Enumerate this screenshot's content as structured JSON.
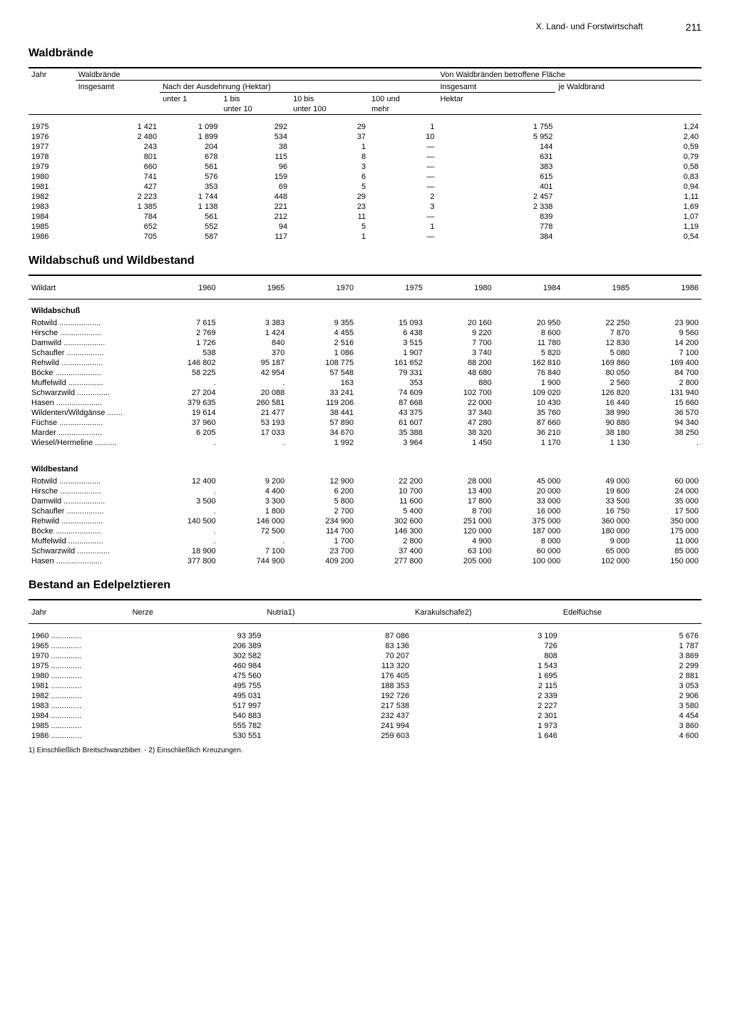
{
  "header": {
    "section": "X. Land- und Forstwirtschaft",
    "page": "211"
  },
  "table1": {
    "title": "Waldbrände",
    "colheads": {
      "jahr": "Jahr",
      "waldbraende": "Waldbrände",
      "insgesamt": "Insgesamt",
      "nach": "Nach der Ausdehnung (Hektar)",
      "u1": "unter 1",
      "u10a": "1 bis",
      "u10b": "unter 10",
      "u100a": "10 bis",
      "u100b": "unter 100",
      "m100a": "100 und",
      "m100b": "mehr",
      "flaeche": "Von Waldbränden betroffene Fläche",
      "hektar": "Hektar",
      "je": "je Waldbrand"
    },
    "rows": [
      {
        "y": "1975",
        "ins": "1 421",
        "u1": "1 099",
        "u10": "292",
        "u100": "29",
        "m100": "1",
        "hek": "1 755",
        "je": "1,24"
      },
      {
        "y": "1976",
        "ins": "2 480",
        "u1": "1 899",
        "u10": "534",
        "u100": "37",
        "m100": "10",
        "hek": "5 952",
        "je": "2,40"
      },
      {
        "y": "1977",
        "ins": "243",
        "u1": "204",
        "u10": "38",
        "u100": "1",
        "m100": "—",
        "hek": "144",
        "je": "0,59"
      },
      {
        "y": "1978",
        "ins": "801",
        "u1": "678",
        "u10": "115",
        "u100": "8",
        "m100": "—",
        "hek": "631",
        "je": "0,79"
      },
      {
        "y": "1979",
        "ins": "660",
        "u1": "561",
        "u10": "96",
        "u100": "3",
        "m100": "—",
        "hek": "383",
        "je": "0,58"
      },
      {
        "y": "1980",
        "ins": "741",
        "u1": "576",
        "u10": "159",
        "u100": "6",
        "m100": "—",
        "hek": "615",
        "je": "0,83"
      },
      {
        "y": "1981",
        "ins": "427",
        "u1": "353",
        "u10": "69",
        "u100": "5",
        "m100": "—",
        "hek": "401",
        "je": "0,94"
      },
      {
        "y": "1982",
        "ins": "2 223",
        "u1": "1 744",
        "u10": "448",
        "u100": "29",
        "m100": "2",
        "hek": "2 457",
        "je": "1,11"
      },
      {
        "y": "1983",
        "ins": "1 385",
        "u1": "1 138",
        "u10": "221",
        "u100": "23",
        "m100": "3",
        "hek": "2 338",
        "je": "1,69"
      },
      {
        "y": "1984",
        "ins": "784",
        "u1": "561",
        "u10": "212",
        "u100": "11",
        "m100": "—",
        "hek": "839",
        "je": "1,07"
      },
      {
        "y": "1985",
        "ins": "652",
        "u1": "552",
        "u10": "94",
        "u100": "5",
        "m100": "1",
        "hek": "778",
        "je": "1,19"
      },
      {
        "y": "1986",
        "ins": "705",
        "u1": "587",
        "u10": "117",
        "u100": "1",
        "m100": "—",
        "hek": "384",
        "je": "0,54"
      }
    ]
  },
  "table2": {
    "title": "Wildabschuß und Wildbestand",
    "col_label": "Wildart",
    "years": [
      "1960",
      "1965",
      "1970",
      "1975",
      "1980",
      "1984",
      "1985",
      "1986"
    ],
    "section1": "Wildabschuß",
    "section2": "Wildbestand",
    "abschuss": [
      {
        "n": "Rotwild",
        "v": [
          "7 615",
          "3 383",
          "9 355",
          "15 093",
          "20 160",
          "20 950",
          "22 250",
          "23 900"
        ]
      },
      {
        "n": "Hirsche",
        "v": [
          "2 769",
          "1 424",
          "4 455",
          "6 438",
          "9 220",
          "8 600",
          "7 870",
          "9 560"
        ]
      },
      {
        "n": "Damwild",
        "v": [
          "1 726",
          "840",
          "2 516",
          "3 515",
          "7 700",
          "11 780",
          "12 830",
          "14 200"
        ]
      },
      {
        "n": "Schaufler",
        "v": [
          "538",
          "370",
          "1 086",
          "1 907",
          "3 740",
          "5 820",
          "5 080",
          "7 100"
        ]
      },
      {
        "n": "Rehwild",
        "v": [
          "146 802",
          "95 187",
          "108 775",
          "161 652",
          "88 200",
          "162 810",
          "169 860",
          "169 400"
        ]
      },
      {
        "n": "Böcke",
        "v": [
          "58 225",
          "42 954",
          "57 548",
          "79 331",
          "48 680",
          "76 840",
          "80 050",
          "84 700"
        ]
      },
      {
        "n": "Muffelwild",
        "v": [
          ".",
          ".",
          "163",
          "353",
          "880",
          "1 900",
          "2 560",
          "2 800"
        ]
      },
      {
        "n": "Schwarzwild",
        "v": [
          "27 204",
          "20 088",
          "33 241",
          "74 609",
          "102 700",
          "109 020",
          "126 820",
          "131 940"
        ]
      },
      {
        "n": "Hasen",
        "v": [
          "379 635",
          "260 581",
          "119 206",
          "87 668",
          "22 000",
          "10 430",
          "16 440",
          "15 660"
        ]
      },
      {
        "n": "Wildenten/Wildgänse",
        "v": [
          "19 614",
          "21 477",
          "38 441",
          "43 375",
          "37 340",
          "35 760",
          "38 990",
          "36 570"
        ]
      },
      {
        "n": "Füchse",
        "v": [
          "37 960",
          "53 193",
          "57 890",
          "61 607",
          "47 280",
          "87 660",
          "90 880",
          "94 340"
        ]
      },
      {
        "n": "Marder",
        "v": [
          "6 205",
          "17 033",
          "34 670",
          "35 388",
          "38 320",
          "36 210",
          "38 180",
          "38 250"
        ]
      },
      {
        "n": "Wiesel/Hermeline",
        "v": [
          ".",
          ".",
          "1 992",
          "3 964",
          "1 450",
          "1 170",
          "1 130",
          "."
        ]
      }
    ],
    "bestand": [
      {
        "n": "Rotwild",
        "v": [
          "12 400",
          "9 200",
          "12 900",
          "22 200",
          "28 000",
          "45 000",
          "49 000",
          "60 000"
        ]
      },
      {
        "n": "Hirsche",
        "v": [
          ".",
          "4 400",
          "6 200",
          "10 700",
          "13 400",
          "20 000",
          "19 600",
          "24 000"
        ]
      },
      {
        "n": "Damwild",
        "v": [
          "3 500",
          "3 300",
          "5 800",
          "11 600",
          "17 800",
          "33 000",
          "33 500",
          "35 000"
        ]
      },
      {
        "n": "Schaufler",
        "v": [
          ".",
          "1 800",
          "2 700",
          "5 400",
          "8 700",
          "16 000",
          "16 750",
          "17 500"
        ]
      },
      {
        "n": "Rehwild",
        "v": [
          "140 500",
          "146 000",
          "234 900",
          "302 600",
          "251 000",
          "375 000",
          "360 000",
          "350 000"
        ]
      },
      {
        "n": "Böcke",
        "v": [
          ".",
          "72 500",
          "114 700",
          "146 300",
          "120 000",
          "187 000",
          "180 000",
          "175 000"
        ]
      },
      {
        "n": "Muffelwild",
        "v": [
          ".",
          ".",
          "1 700",
          "2 800",
          "4 900",
          "8 000",
          "9 000",
          "11 000"
        ]
      },
      {
        "n": "Schwarzwild",
        "v": [
          "18 900",
          "7 100",
          "23 700",
          "37 400",
          "63 100",
          "60 000",
          "65 000",
          "85 000"
        ]
      },
      {
        "n": "Hasen",
        "v": [
          "377 800",
          "744 900",
          "409 200",
          "277 800",
          "205 000",
          "100 000",
          "102 000",
          "150 000"
        ]
      }
    ]
  },
  "table3": {
    "title": "Bestand an Edelpelztieren",
    "cols": [
      "Jahr",
      "Nerze",
      "Nutria1)",
      "Karakulschafe2)",
      "Edelfüchse"
    ],
    "rows": [
      {
        "y": "1960",
        "v": [
          "93 359",
          "87 086",
          "3 109",
          "5 676"
        ]
      },
      {
        "y": "1965",
        "v": [
          "206 389",
          "83 136",
          "726",
          "1 787"
        ]
      },
      {
        "y": "1970",
        "v": [
          "302 582",
          "70 207",
          "808",
          "3 869"
        ]
      },
      {
        "y": "1975",
        "v": [
          "460 984",
          "113 320",
          "1 543",
          "2 299"
        ]
      },
      {
        "y": "1980",
        "v": [
          "475 560",
          "176 405",
          "1 695",
          "2 881"
        ]
      },
      {
        "y": "1981",
        "v": [
          "495 755",
          "188 353",
          "2 115",
          "3 053"
        ]
      },
      {
        "y": "1982",
        "v": [
          "495 031",
          "192 726",
          "2 339",
          "2 906"
        ]
      },
      {
        "y": "1983",
        "v": [
          "517 997",
          "217 538",
          "2 227",
          "3 580"
        ]
      },
      {
        "y": "1984",
        "v": [
          "540 883",
          "232 437",
          "2 301",
          "4 454"
        ]
      },
      {
        "y": "1985",
        "v": [
          "555 782",
          "241 994",
          "1 973",
          "3 860"
        ]
      },
      {
        "y": "1986",
        "v": [
          "530 551",
          "259 603",
          "1 646",
          "4 600"
        ]
      }
    ],
    "footnote": "1) Einschließlich Breitschwanzbiber. - 2) Einschließlich Kreuzungen."
  }
}
